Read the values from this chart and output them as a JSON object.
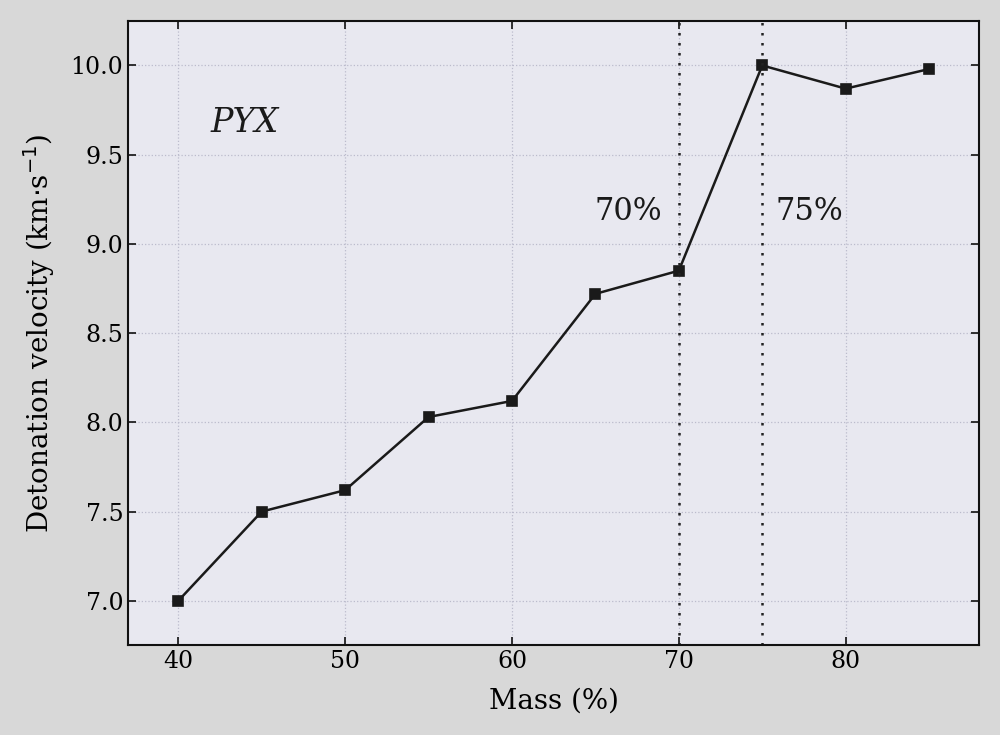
{
  "x": [
    40,
    45,
    50,
    55,
    60,
    65,
    70,
    75,
    80,
    85
  ],
  "y": [
    7.0,
    7.5,
    7.62,
    8.03,
    8.12,
    8.72,
    8.85,
    10.0,
    9.87,
    9.98
  ],
  "xlabel": "Mass (%)",
  "label_text": "PYX",
  "vline1_x": 70,
  "vline2_x": 75,
  "vline1_label": "70%",
  "vline2_label": "75%",
  "xlim": [
    37,
    88
  ],
  "ylim": [
    6.75,
    10.25
  ],
  "xticks": [
    40,
    50,
    60,
    70,
    80
  ],
  "yticks": [
    7.0,
    7.5,
    8.0,
    8.5,
    9.0,
    9.5,
    10.0
  ],
  "line_color": "#1a1a1a",
  "marker": "s",
  "marker_size": 7,
  "marker_color": "#1a1a1a",
  "figure_bg_color": "#d8d8d8",
  "plot_bg_color": "#e8e8f0",
  "font_size_label": 20,
  "font_size_tick": 17,
  "font_size_annot": 22,
  "font_size_pyx": 24,
  "grid_color": "#bbbbcc",
  "spine_color": "#111111"
}
